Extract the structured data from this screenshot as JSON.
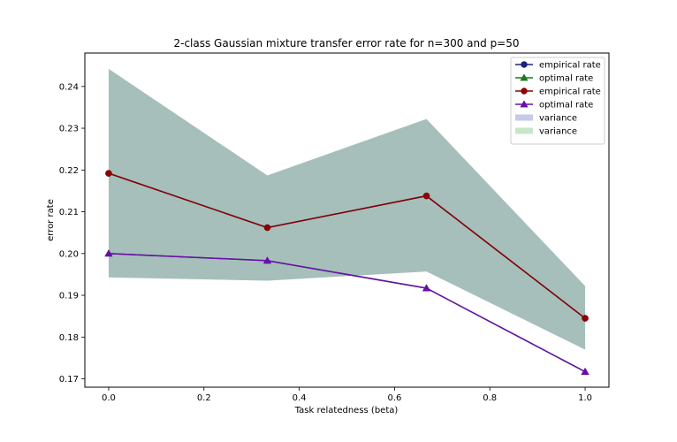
{
  "chart_data": {
    "type": "line",
    "title": "2-class Gaussian mixture transfer error rate for n=300 and p=50",
    "xlabel": "Task relatedness (beta)",
    "ylabel": "error rate",
    "xlim": [
      -0.05,
      1.05
    ],
    "ylim": [
      0.168,
      0.248
    ],
    "x_ticks": [
      "0.0",
      "0.2",
      "0.4",
      "0.6",
      "0.8",
      "1.0"
    ],
    "y_ticks": [
      "0.17",
      "0.18",
      "0.19",
      "0.20",
      "0.21",
      "0.22",
      "0.23",
      "0.24"
    ],
    "x": [
      0.0,
      0.333,
      0.667,
      1.0
    ],
    "series": [
      {
        "name": "empirical rate",
        "color": "#1a237e",
        "marker": "circle",
        "values": [
          0.2192,
          0.2062,
          0.2138,
          0.1845
        ]
      },
      {
        "name": "optimal rate",
        "color": "#1b7a1b",
        "marker": "triangle",
        "values": [
          0.2,
          0.1983,
          0.1917,
          0.1717
        ]
      },
      {
        "name": "empirical rate",
        "color": "#8b0000",
        "marker": "circle",
        "values": [
          0.2192,
          0.2062,
          0.2138,
          0.1845
        ]
      },
      {
        "name": "optimal rate",
        "color": "#6a0dad",
        "marker": "triangle",
        "values": [
          0.2,
          0.1983,
          0.1917,
          0.1717
        ]
      }
    ],
    "bands": [
      {
        "name": "variance",
        "legend_color": "#c5cae9",
        "upper": [
          0.2442,
          0.2187,
          0.2322,
          0.1922
        ],
        "lower": [
          0.1943,
          0.1935,
          0.1957,
          0.177
        ]
      },
      {
        "name": "variance",
        "legend_color": "#c8e6c9",
        "upper": [
          0.2442,
          0.2187,
          0.2322,
          0.1922
        ],
        "lower": [
          0.1943,
          0.1935,
          0.1957,
          0.177
        ]
      }
    ],
    "band_fill_color": "#a6bfbb",
    "legend_position": "top-right",
    "grid": false
  }
}
